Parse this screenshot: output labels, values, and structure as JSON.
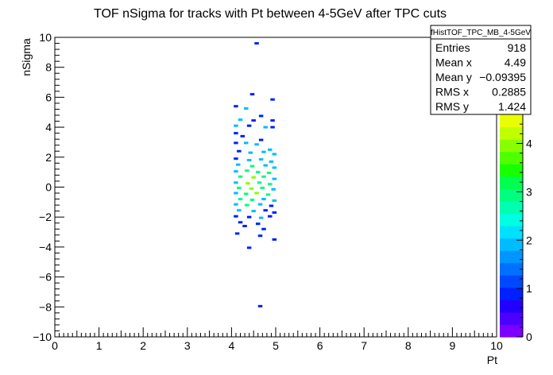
{
  "chart_data": {
    "type": "heatmap",
    "title": "TOF nSigma for tracks with Pt between 4-5GeV after TPC cuts",
    "xlabel": "Pt",
    "ylabel": "nSigma",
    "xlim": [
      0,
      10
    ],
    "ylim": [
      -10,
      10
    ],
    "x_ticks": [
      "0",
      "1",
      "2",
      "3",
      "4",
      "5",
      "6",
      "7",
      "8",
      "9",
      "10"
    ],
    "y_ticks": [
      "−10",
      "−8",
      "−6",
      "−4",
      "−2",
      "0",
      "2",
      "4",
      "6",
      "8",
      "10"
    ],
    "grid": false,
    "colorbar": {
      "range": [
        0,
        4.6
      ],
      "ticks": [
        "0",
        "1",
        "2",
        "3",
        "4"
      ]
    },
    "stats_box": {
      "name": "fHistTOF_TPC_MB_4-5GeV",
      "rows": [
        {
          "label": "Entries",
          "value": "918"
        },
        {
          "label": "Mean x",
          "value": "4.49"
        },
        {
          "label": "Mean y",
          "value": "−0.09395"
        },
        {
          "label": "RMS x",
          "value": "0.2885"
        },
        {
          "label": "RMS y",
          "value": "1.424"
        }
      ]
    },
    "cells": [
      [
        4.52,
        9.6,
        1
      ],
      [
        4.42,
        6.2,
        1
      ],
      [
        4.88,
        5.85,
        1
      ],
      [
        4.05,
        5.4,
        1
      ],
      [
        4.28,
        5.25,
        2
      ],
      [
        4.62,
        4.75,
        1
      ],
      [
        4.15,
        4.5,
        2
      ],
      [
        4.45,
        4.45,
        1
      ],
      [
        4.88,
        4.45,
        1
      ],
      [
        4.05,
        4.1,
        2
      ],
      [
        4.35,
        4.1,
        1
      ],
      [
        4.72,
        4.0,
        2
      ],
      [
        4.88,
        4.0,
        1
      ],
      [
        4.05,
        3.6,
        1
      ],
      [
        4.2,
        3.4,
        1
      ],
      [
        4.62,
        3.15,
        1
      ],
      [
        4.05,
        2.95,
        1
      ],
      [
        4.28,
        2.95,
        2
      ],
      [
        4.52,
        2.85,
        2
      ],
      [
        4.82,
        2.5,
        2
      ],
      [
        4.12,
        2.4,
        1
      ],
      [
        4.38,
        2.3,
        2
      ],
      [
        4.68,
        2.35,
        2
      ],
      [
        4.92,
        2.2,
        2
      ],
      [
        4.05,
        1.9,
        1
      ],
      [
        4.35,
        1.8,
        2
      ],
      [
        4.62,
        1.85,
        2
      ],
      [
        4.85,
        1.7,
        2
      ],
      [
        4.1,
        1.5,
        2
      ],
      [
        4.42,
        1.4,
        3
      ],
      [
        4.72,
        1.45,
        2
      ],
      [
        4.92,
        1.3,
        2
      ],
      [
        4.05,
        1.05,
        2
      ],
      [
        4.3,
        1.1,
        3
      ],
      [
        4.55,
        1.0,
        3
      ],
      [
        4.8,
        0.95,
        3
      ],
      [
        4.15,
        0.7,
        3
      ],
      [
        4.45,
        0.65,
        4
      ],
      [
        4.68,
        0.7,
        3
      ],
      [
        4.92,
        0.55,
        2
      ],
      [
        4.05,
        0.3,
        2
      ],
      [
        4.32,
        0.25,
        4
      ],
      [
        4.58,
        0.3,
        3
      ],
      [
        4.82,
        0.2,
        3
      ],
      [
        4.12,
        -0.05,
        3
      ],
      [
        4.4,
        -0.1,
        4
      ],
      [
        4.65,
        -0.05,
        3
      ],
      [
        4.9,
        -0.15,
        2
      ],
      [
        4.05,
        -0.4,
        2
      ],
      [
        4.28,
        -0.45,
        3
      ],
      [
        4.52,
        -0.4,
        4
      ],
      [
        4.78,
        -0.5,
        3
      ],
      [
        4.15,
        -0.8,
        3
      ],
      [
        4.42,
        -0.85,
        3
      ],
      [
        4.68,
        -0.8,
        2
      ],
      [
        4.92,
        -0.9,
        2
      ],
      [
        4.05,
        -1.15,
        2
      ],
      [
        4.3,
        -1.2,
        3
      ],
      [
        4.6,
        -1.15,
        2
      ],
      [
        4.85,
        -1.25,
        1
      ],
      [
        4.12,
        -1.55,
        2
      ],
      [
        4.45,
        -1.6,
        2
      ],
      [
        4.72,
        -1.55,
        1
      ],
      [
        4.92,
        -1.7,
        1
      ],
      [
        4.05,
        -1.95,
        1
      ],
      [
        4.35,
        -2.0,
        1
      ],
      [
        4.62,
        -2.05,
        2
      ],
      [
        4.82,
        -1.95,
        1
      ],
      [
        4.15,
        -2.35,
        1
      ],
      [
        4.55,
        -2.45,
        1
      ],
      [
        4.25,
        -2.6,
        1
      ],
      [
        4.68,
        -2.8,
        1
      ],
      [
        4.08,
        -3.1,
        1
      ],
      [
        4.6,
        -3.25,
        1
      ],
      [
        4.92,
        -3.5,
        1
      ],
      [
        4.35,
        -4.05,
        1
      ],
      [
        4.6,
        -7.95,
        1
      ]
    ]
  }
}
